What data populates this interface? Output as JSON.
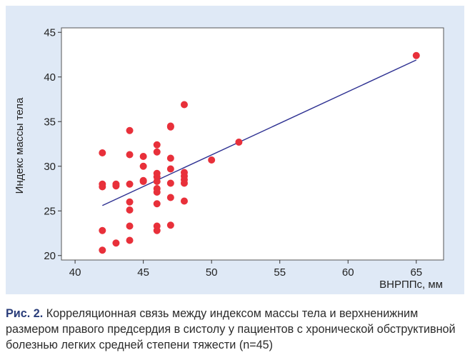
{
  "chart_data": {
    "type": "scatter",
    "xlabel": "ВНРППс, мм",
    "ylabel": "Индекс массы тела",
    "xlim": [
      39,
      67
    ],
    "ylim": [
      19.5,
      45.5
    ],
    "xticks": [
      40,
      45,
      50,
      55,
      60,
      65
    ],
    "yticks": [
      20,
      25,
      30,
      35,
      40,
      45
    ],
    "grid": false,
    "points": [
      [
        42,
        31.5
      ],
      [
        42,
        28.0
      ],
      [
        42,
        27.7
      ],
      [
        42,
        22.8
      ],
      [
        42,
        20.6
      ],
      [
        43,
        28.0
      ],
      [
        43,
        27.8
      ],
      [
        43,
        21.4
      ],
      [
        44,
        34.0
      ],
      [
        44,
        31.3
      ],
      [
        44,
        28.0
      ],
      [
        44,
        26.0
      ],
      [
        44,
        25.1
      ],
      [
        44,
        23.3
      ],
      [
        44,
        21.7
      ],
      [
        45,
        31.1
      ],
      [
        45,
        30.0
      ],
      [
        45,
        28.4
      ],
      [
        45,
        28.3
      ],
      [
        46,
        32.4
      ],
      [
        46,
        31.6
      ],
      [
        46,
        29.2
      ],
      [
        46,
        28.8
      ],
      [
        46,
        28.3
      ],
      [
        46,
        27.5
      ],
      [
        46,
        27.1
      ],
      [
        46,
        25.8
      ],
      [
        46,
        23.3
      ],
      [
        46,
        22.8
      ],
      [
        47,
        34.5
      ],
      [
        47,
        34.4
      ],
      [
        47,
        30.9
      ],
      [
        47,
        29.7
      ],
      [
        47,
        28.1
      ],
      [
        47,
        26.5
      ],
      [
        47,
        23.4
      ],
      [
        48,
        36.9
      ],
      [
        48,
        29.3
      ],
      [
        48,
        28.9
      ],
      [
        48,
        28.5
      ],
      [
        48,
        28.1
      ],
      [
        48,
        26.1
      ],
      [
        50,
        30.7
      ],
      [
        52,
        32.7
      ],
      [
        65,
        42.4
      ]
    ],
    "trendline": {
      "x": [
        42,
        65
      ],
      "y": [
        25.6,
        41.9
      ]
    },
    "colors": {
      "points": "#e8303a",
      "line": "#2e3192",
      "background": "#dfe9f6",
      "plot": "#ffffff"
    }
  },
  "caption": {
    "label": "Рис. 2.",
    "text": " Корреляционная связь между индексом массы тела и верхненижним размером правого предсердия в систолу у пациентов с хронической обструктивной болезнью легких средней степени тяжести (n=45)"
  }
}
